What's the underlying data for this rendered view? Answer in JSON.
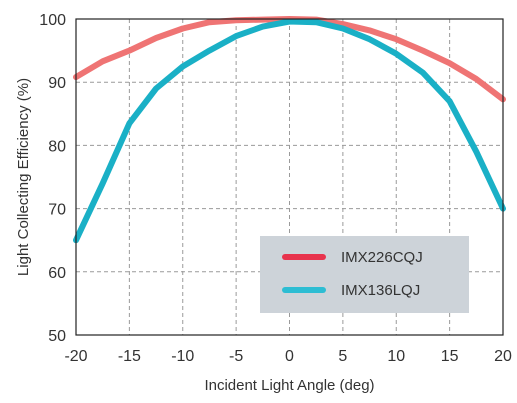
{
  "chart_data": {
    "type": "line",
    "title": "",
    "xlabel": "Incident Light Angle (deg)",
    "ylabel": "Light Collecting Efficiency (%)",
    "xlim": [
      -20,
      20
    ],
    "ylim": [
      50,
      100
    ],
    "x_ticks": [
      -20,
      -15,
      -10,
      -5,
      0,
      5,
      10,
      15,
      20
    ],
    "y_ticks": [
      50,
      60,
      70,
      80,
      90,
      100
    ],
    "grid": "dashed",
    "legend_placement": "lower-right",
    "series": [
      {
        "name": "IMX226CQJ",
        "color": "#ef7474",
        "legend_color": "#e8334d",
        "x": [
          -20,
          -17.5,
          -15,
          -12.5,
          -10,
          -7.5,
          -5,
          -2.5,
          0,
          2.5,
          5,
          7.5,
          10,
          12.5,
          15,
          17.5,
          20
        ],
        "y": [
          90.8,
          93.3,
          95.0,
          97.0,
          98.5,
          99.5,
          99.8,
          99.9,
          100.0,
          99.9,
          99.2,
          98.2,
          96.8,
          95.0,
          93.0,
          90.5,
          87.3
        ]
      },
      {
        "name": "IMX136LQJ",
        "color": "#1ab0c6",
        "legend_color": "#2dbdd3",
        "x": [
          -20,
          -17.5,
          -15,
          -12.5,
          -10,
          -7.5,
          -5,
          -2.5,
          0,
          2.5,
          5,
          7.5,
          10,
          12.5,
          15,
          17.5,
          20
        ],
        "y": [
          65.0,
          74.0,
          83.5,
          89.0,
          92.5,
          95.0,
          97.3,
          98.8,
          99.6,
          99.5,
          98.5,
          96.8,
          94.5,
          91.5,
          87.0,
          79.0,
          70.0
        ]
      }
    ]
  }
}
